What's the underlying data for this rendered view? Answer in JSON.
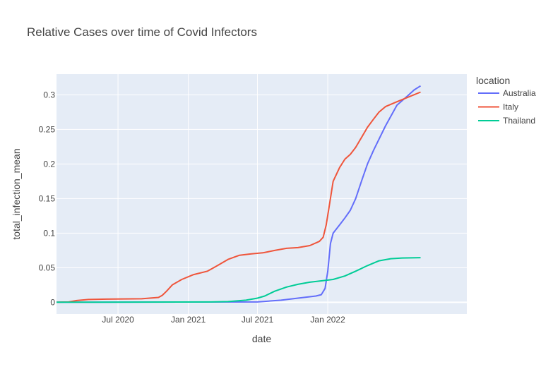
{
  "chart_data": {
    "type": "line",
    "title": "Relative Cases over time of Covid Infectors",
    "xlabel": "date",
    "ylabel": "total_infection_mean",
    "x_axis": {
      "type": "date",
      "range": [
        "2020-01-22",
        "2022-12-31"
      ],
      "ticks": [
        {
          "value": "2020-07-01",
          "label": "Jul 2020"
        },
        {
          "value": "2021-01-01",
          "label": "Jan 2021"
        },
        {
          "value": "2021-07-01",
          "label": "Jul 2021"
        },
        {
          "value": "2022-01-01",
          "label": "Jan 2022"
        }
      ]
    },
    "y_axis": {
      "range": [
        -0.017,
        0.33
      ],
      "ticks": [
        {
          "value": 0,
          "label": "0"
        },
        {
          "value": 0.05,
          "label": "0.05"
        },
        {
          "value": 0.1,
          "label": "0.1"
        },
        {
          "value": 0.15,
          "label": "0.15"
        },
        {
          "value": 0.2,
          "label": "0.2"
        },
        {
          "value": 0.25,
          "label": "0.25"
        },
        {
          "value": 0.3,
          "label": "0.3"
        }
      ]
    },
    "grid": true,
    "legend": {
      "title": "location",
      "placement": "right"
    },
    "series": [
      {
        "name": "Australia",
        "color": "#636efa",
        "points": [
          [
            "2020-01-22",
            0
          ],
          [
            "2021-07-01",
            0.0005
          ],
          [
            "2021-09-01",
            0.003
          ],
          [
            "2021-10-15",
            0.006
          ],
          [
            "2021-12-01",
            0.009
          ],
          [
            "2021-12-15",
            0.011
          ],
          [
            "2021-12-25",
            0.02
          ],
          [
            "2022-01-01",
            0.045
          ],
          [
            "2022-01-08",
            0.085
          ],
          [
            "2022-01-15",
            0.1
          ],
          [
            "2022-02-01",
            0.112
          ],
          [
            "2022-02-15",
            0.122
          ],
          [
            "2022-03-01",
            0.133
          ],
          [
            "2022-03-15",
            0.15
          ],
          [
            "2022-04-01",
            0.178
          ],
          [
            "2022-04-15",
            0.2
          ],
          [
            "2022-05-01",
            0.22
          ],
          [
            "2022-06-01",
            0.255
          ],
          [
            "2022-07-01",
            0.285
          ],
          [
            "2022-08-01",
            0.3
          ],
          [
            "2022-08-15",
            0.307
          ],
          [
            "2022-09-01",
            0.313
          ]
        ]
      },
      {
        "name": "Italy",
        "color": "#ef553b",
        "points": [
          [
            "2020-01-22",
            0
          ],
          [
            "2020-02-23",
            0.0005
          ],
          [
            "2020-03-15",
            0.0025
          ],
          [
            "2020-04-15",
            0.004
          ],
          [
            "2020-06-01",
            0.0045
          ],
          [
            "2020-09-01",
            0.005
          ],
          [
            "2020-10-15",
            0.007
          ],
          [
            "2020-10-25",
            0.01
          ],
          [
            "2020-11-05",
            0.016
          ],
          [
            "2020-11-20",
            0.025
          ],
          [
            "2020-12-15",
            0.033
          ],
          [
            "2021-01-15",
            0.04
          ],
          [
            "2021-02-20",
            0.045
          ],
          [
            "2021-03-15",
            0.052
          ],
          [
            "2021-04-15",
            0.062
          ],
          [
            "2021-05-15",
            0.068
          ],
          [
            "2021-06-15",
            0.07
          ],
          [
            "2021-07-15",
            0.0715
          ],
          [
            "2021-08-15",
            0.075
          ],
          [
            "2021-09-15",
            0.078
          ],
          [
            "2021-10-15",
            0.079
          ],
          [
            "2021-11-15",
            0.082
          ],
          [
            "2021-12-10",
            0.088
          ],
          [
            "2021-12-20",
            0.094
          ],
          [
            "2021-12-28",
            0.112
          ],
          [
            "2022-01-05",
            0.14
          ],
          [
            "2022-01-15",
            0.175
          ],
          [
            "2022-02-01",
            0.195
          ],
          [
            "2022-02-15",
            0.207
          ],
          [
            "2022-03-01",
            0.214
          ],
          [
            "2022-03-15",
            0.224
          ],
          [
            "2022-04-01",
            0.24
          ],
          [
            "2022-04-15",
            0.253
          ],
          [
            "2022-05-01",
            0.265
          ],
          [
            "2022-05-15",
            0.275
          ],
          [
            "2022-06-01",
            0.283
          ],
          [
            "2022-07-01",
            0.29
          ],
          [
            "2022-08-01",
            0.297
          ],
          [
            "2022-09-01",
            0.304
          ]
        ]
      },
      {
        "name": "Thailand",
        "color": "#00cc96",
        "points": [
          [
            "2020-01-22",
            0
          ],
          [
            "2021-03-01",
            0.0005
          ],
          [
            "2021-04-15",
            0.001
          ],
          [
            "2021-06-01",
            0.003
          ],
          [
            "2021-07-01",
            0.006
          ],
          [
            "2021-07-20",
            0.009
          ],
          [
            "2021-08-15",
            0.016
          ],
          [
            "2021-09-15",
            0.022
          ],
          [
            "2021-10-15",
            0.026
          ],
          [
            "2021-11-15",
            0.029
          ],
          [
            "2021-12-15",
            0.031
          ],
          [
            "2022-01-15",
            0.033
          ],
          [
            "2022-02-15",
            0.038
          ],
          [
            "2022-03-15",
            0.045
          ],
          [
            "2022-04-15",
            0.053
          ],
          [
            "2022-05-15",
            0.06
          ],
          [
            "2022-06-15",
            0.063
          ],
          [
            "2022-07-15",
            0.064
          ],
          [
            "2022-09-01",
            0.0645
          ]
        ]
      }
    ]
  }
}
